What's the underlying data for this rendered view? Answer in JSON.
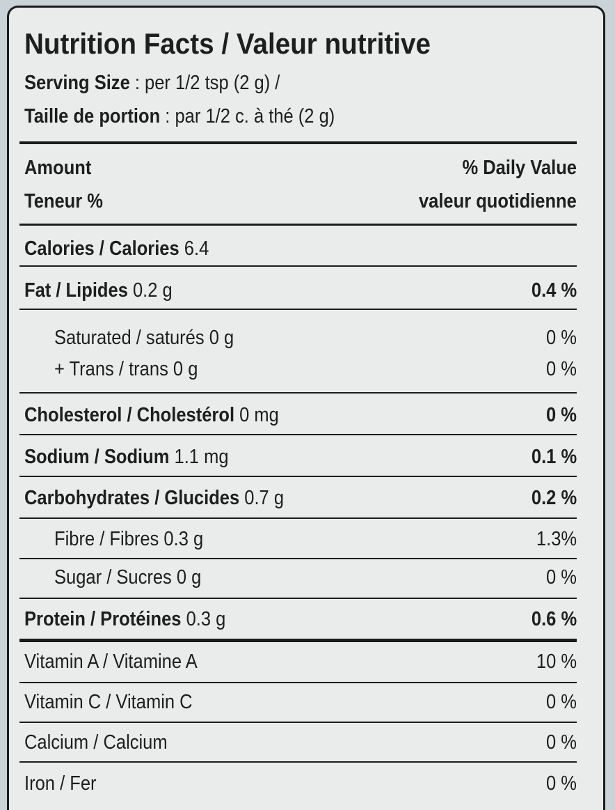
{
  "title": "Nutrition Facts / Valeur nutritive",
  "serving_size": {
    "label": "Serving Size",
    "text": ": per 1/2 tsp (2 g)  /"
  },
  "portion": {
    "label": "Taille de portion",
    "text": ": par 1/2 c. à thé (2 g)"
  },
  "header": {
    "amount": "Amount",
    "teneur": "Teneur %",
    "daily_value": "% Daily Value",
    "valeur_quotidienne": "valeur quotidienne"
  },
  "rows": [
    {
      "name": "Calories / Calories",
      "amount": "6.4"
    },
    {
      "name": "Fat / Lipides",
      "amount": "0.2 g",
      "daily_value": "0.4 %"
    },
    {
      "name": "Saturated / saturés",
      "amount": "0 g",
      "daily_value": "0 %"
    },
    {
      "name": "+ Trans / trans",
      "amount": "0 g",
      "daily_value": "0 %"
    },
    {
      "name": "Cholesterol / Cholestérol",
      "amount": "0 mg",
      "daily_value": "0 %"
    },
    {
      "name": "Sodium / Sodium",
      "amount": "1.1 mg",
      "daily_value": "0.1 %"
    },
    {
      "name": "Carbohydrates / Glucides",
      "amount": "0.7 g",
      "daily_value": "0.2 %"
    },
    {
      "name": "Fibre / Fibres",
      "amount": "0.3 g",
      "daily_value": "1.3%"
    },
    {
      "name": "Sugar / Sucres",
      "amount": "0 g",
      "daily_value": "0 %"
    },
    {
      "name": "Protein / Protéines",
      "amount": "0.3 g",
      "daily_value": "0.6 %"
    },
    {
      "name": "Vitamin A / Vitamine A",
      "daily_value": "10 %"
    },
    {
      "name": "Vitamin C / Vitamin C",
      "daily_value": "0 %"
    },
    {
      "name": "Calcium / Calcium",
      "daily_value": "0 %"
    },
    {
      "name": "Iron / Fer",
      "daily_value": "0 %"
    }
  ]
}
